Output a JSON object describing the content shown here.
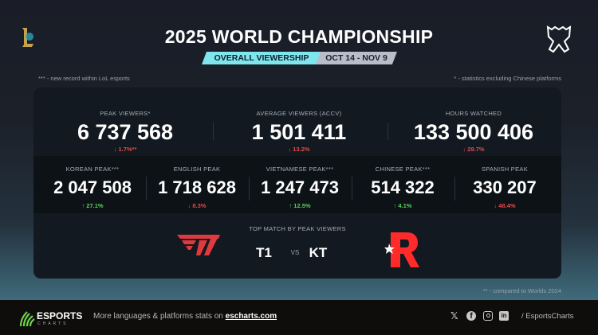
{
  "header": {
    "title": "2025 WORLD CHAMPIONSHIP",
    "tag": "OVERALL VIEWERSHIP",
    "dates": "OCT 14 - NOV 9",
    "note_left": "*** - new record within LoL esports",
    "note_right": "* - statistics excluding Chinese platforms"
  },
  "main_stats": [
    {
      "label": "PEAK VIEWERS*",
      "value": "6 737 568",
      "delta": "↓ 1.7%**",
      "trend": "down"
    },
    {
      "label": "AVERAGE VIEWERS (ACCV)",
      "value": "1 501 411",
      "delta": "↓ 13.2%",
      "trend": "down"
    },
    {
      "label": "HOURS WATCHED",
      "value": "133 500 406",
      "delta": "↓ 29.7%",
      "trend": "down"
    }
  ],
  "language_stats": [
    {
      "label": "KOREAN PEAK***",
      "value": "2 047 508",
      "delta": "↑ 27.1%",
      "trend": "up"
    },
    {
      "label": "ENGLISH PEAK",
      "value": "1 718 628",
      "delta": "↓ 8.3%",
      "trend": "down"
    },
    {
      "label": "VIETNAMESE PEAK***",
      "value": "1 247 473",
      "delta": "↑ 12.5%",
      "trend": "up"
    },
    {
      "label": "CHINESE PEAK***",
      "value": "514 322",
      "delta": "↑ 4.1%",
      "trend": "up"
    },
    {
      "label": "SPANISH PEAK",
      "value": "330 207",
      "delta": "↓ 48.4%",
      "trend": "down"
    }
  ],
  "top_match": {
    "label": "TOP MATCH BY PEAK VIEWERS",
    "team1": "T1",
    "vs": "VS",
    "team2": "KT",
    "team1_logo": "T1",
    "team2_logo": "R"
  },
  "footnote": "** - compared to Worlds 2024",
  "footer": {
    "brand": "ESPORTS",
    "brand_sub": "CHARTS",
    "text": "More languages & platforms stats on ",
    "link": "escharts.com",
    "handle": "/ EsportsCharts",
    "icons": [
      "x-icon",
      "facebook-icon",
      "instagram-icon",
      "linkedin-icon"
    ]
  },
  "colors": {
    "accent": "#7fe6ee",
    "up": "#56d35a",
    "down": "#e24a4a",
    "team1": "#e03a3e",
    "team2": "#ff2a2a"
  }
}
